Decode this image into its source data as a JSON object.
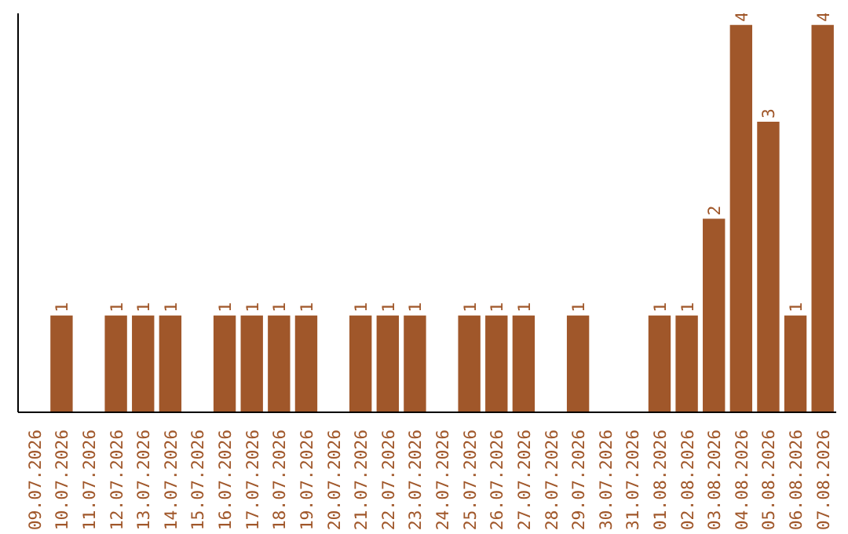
{
  "chart_data": {
    "type": "bar",
    "categories": [
      "09.07.2026",
      "10.07.2026",
      "11.07.2026",
      "12.07.2026",
      "13.07.2026",
      "14.07.2026",
      "15.07.2026",
      "16.07.2026",
      "17.07.2026",
      "18.07.2026",
      "19.07.2026",
      "20.07.2026",
      "21.07.2026",
      "22.07.2026",
      "23.07.2026",
      "24.07.2026",
      "25.07.2026",
      "26.07.2026",
      "27.07.2026",
      "28.07.2026",
      "29.07.2026",
      "30.07.2026",
      "31.07.2026",
      "01.08.2026",
      "02.08.2026",
      "03.08.2026",
      "04.08.2026",
      "05.08.2026",
      "06.08.2026",
      "07.08.2026"
    ],
    "values": [
      0,
      1,
      0,
      1,
      1,
      1,
      0,
      1,
      1,
      1,
      1,
      0,
      1,
      1,
      1,
      0,
      1,
      1,
      1,
      0,
      1,
      0,
      0,
      1,
      1,
      2,
      4,
      3,
      1,
      4
    ],
    "value_labels": [
      null,
      "1",
      null,
      "1",
      "1",
      "1",
      null,
      "1",
      "1",
      "1",
      "1",
      null,
      "1",
      "1",
      "1",
      null,
      "1",
      "1",
      "1",
      null,
      "1",
      null,
      null,
      "1",
      "1",
      "2",
      "4",
      "3",
      "1",
      "4"
    ],
    "color": "#a0572a",
    "grid": false
  }
}
